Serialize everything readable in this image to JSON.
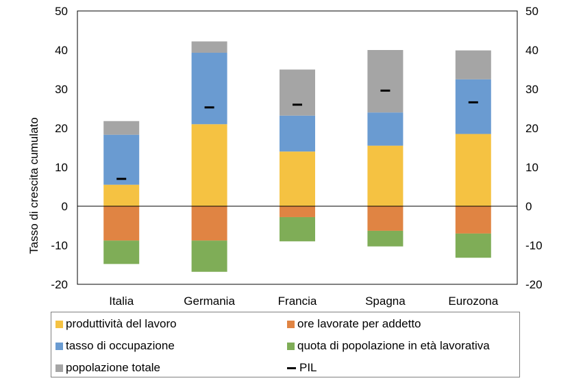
{
  "chart_data": {
    "type": "bar",
    "stacked": true,
    "categories": [
      "Italia",
      "Germania",
      "Francia",
      "Spagna",
      "Eurozona"
    ],
    "ylabel": "Tasso di crescita cumulato",
    "ylim": [
      -20,
      50
    ],
    "yticks": [
      -20,
      -10,
      0,
      10,
      20,
      30,
      40,
      50
    ],
    "secondary_axis": true,
    "series": [
      {
        "name": "produttività del lavoro",
        "color": "#F5C242",
        "values": [
          5.5,
          21.0,
          14.0,
          15.5,
          18.5
        ]
      },
      {
        "name": "ore lavorate per addetto",
        "color": "#E08443",
        "values": [
          -8.8,
          -8.8,
          -2.8,
          -6.3,
          -7.0
        ]
      },
      {
        "name": "tasso di occupazione",
        "color": "#6A9BD1",
        "values": [
          12.8,
          18.3,
          9.2,
          8.5,
          14.0
        ]
      },
      {
        "name": "quota di popolazione in età lavorativa",
        "color": "#7FAD57",
        "values": [
          -6.0,
          -8.0,
          -6.2,
          -4.0,
          -6.2
        ]
      },
      {
        "name": "popolazione totale",
        "color": "#A5A5A5",
        "values": [
          3.5,
          2.9,
          11.8,
          16.0,
          7.4
        ]
      }
    ],
    "pil": {
      "name": "PIL",
      "color": "#000000",
      "values": [
        7.0,
        25.3,
        26.0,
        29.6,
        26.6
      ]
    },
    "legend_position": "bottom"
  }
}
